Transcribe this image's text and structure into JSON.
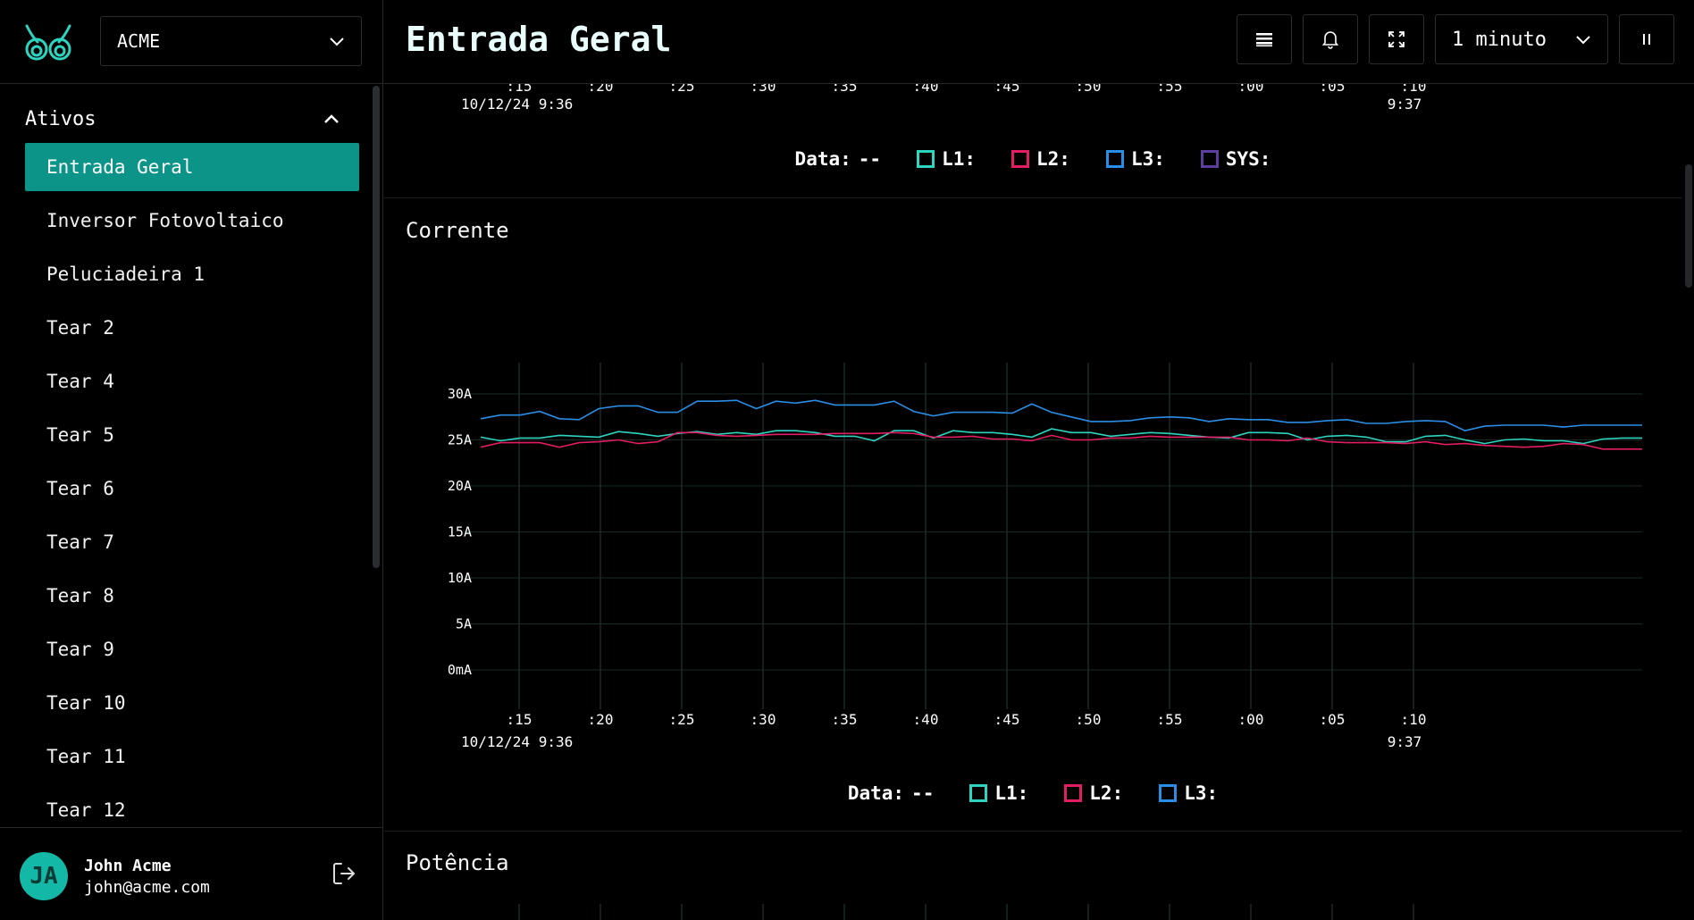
{
  "org_select": {
    "value": "ACME"
  },
  "sidebar": {
    "section_title": "Ativos",
    "items": [
      {
        "label": "Entrada Geral",
        "active": true
      },
      {
        "label": "Inversor Fotovoltaico"
      },
      {
        "label": "Peluciadeira 1"
      },
      {
        "label": "Tear 2"
      },
      {
        "label": "Tear 4"
      },
      {
        "label": "Tear 5"
      },
      {
        "label": "Tear 6"
      },
      {
        "label": "Tear 7"
      },
      {
        "label": "Tear 8"
      },
      {
        "label": "Tear 9"
      },
      {
        "label": "Tear 10"
      },
      {
        "label": "Tear 11"
      },
      {
        "label": "Tear 12"
      }
    ]
  },
  "user": {
    "initials": "JA",
    "name": "John Acme",
    "email": "john@acme.com"
  },
  "header": {
    "title": "Entrada Geral",
    "interval": "1 minuto"
  },
  "colors": {
    "accent": "#0d9488",
    "L1": "#2dd4bf",
    "L2": "#e11d63",
    "L3": "#2b8ee6",
    "SYS": "#5b3f9e"
  },
  "top_panel": {
    "x_ticks": [
      ":15",
      ":20",
      ":25",
      ":30",
      ":35",
      ":40",
      ":45",
      ":50",
      ":55",
      ":00",
      ":05",
      ":10"
    ],
    "date_left": "10/12/24 9:36",
    "date_right": "9:37",
    "legend": {
      "data_label": "Data:",
      "data_value": "--",
      "l1": "L1:",
      "l2": "L2:",
      "l3": "L3:",
      "sys": "SYS:"
    }
  },
  "current_panel": {
    "title": "Corrente",
    "date_left": "10/12/24 9:36",
    "date_right": "9:37",
    "legend": {
      "data_label": "Data:",
      "data_value": "--",
      "l1": "L1:",
      "l2": "L2:",
      "l3": "L3:"
    }
  },
  "power_panel": {
    "title": "Potência"
  },
  "chart_data": {
    "type": "line",
    "title": "Corrente",
    "x_ticks": [
      ":15",
      ":20",
      ":25",
      ":30",
      ":35",
      ":40",
      ":45",
      ":50",
      ":55",
      ":00",
      ":05",
      ":10"
    ],
    "y_ticks": [
      "0mA",
      "5A",
      "10A",
      "15A",
      "20A",
      "25A",
      "30A"
    ],
    "ylim": [
      0,
      32
    ],
    "grid": true,
    "series": [
      {
        "name": "L1",
        "color": "#2dd4bf",
        "values": [
          25.3,
          24.9,
          25.2,
          25.2,
          25.5,
          25.4,
          25.3,
          25.9,
          25.7,
          25.4,
          25.7,
          25.9,
          25.6,
          25.8,
          25.6,
          26.0,
          26.0,
          25.8,
          25.4,
          25.4,
          24.9,
          26.0,
          26.0,
          25.2,
          26.0,
          25.8,
          25.8,
          25.6,
          25.3,
          26.2,
          25.8,
          25.8,
          25.4,
          25.6,
          25.8,
          25.7,
          25.5,
          25.3,
          25.2,
          25.8,
          25.8,
          25.7,
          25.0,
          25.4,
          25.5,
          25.3,
          24.8,
          24.8,
          25.4,
          25.5,
          25.0,
          24.6,
          25.0,
          25.1,
          24.9,
          24.9,
          24.6,
          25.1,
          25.2,
          25.2
        ]
      },
      {
        "name": "L2",
        "color": "#e11d63",
        "values": [
          24.2,
          24.7,
          24.7,
          24.7,
          24.2,
          24.7,
          24.8,
          25.0,
          24.6,
          24.8,
          25.8,
          25.8,
          25.5,
          25.4,
          25.5,
          25.6,
          25.6,
          25.6,
          25.7,
          25.7,
          25.7,
          25.8,
          25.7,
          25.3,
          25.3,
          25.4,
          25.1,
          25.1,
          24.9,
          25.5,
          25.0,
          25.0,
          25.2,
          25.2,
          25.4,
          25.3,
          25.3,
          25.3,
          25.3,
          25.0,
          25.0,
          24.9,
          25.2,
          24.8,
          24.7,
          24.7,
          24.7,
          24.6,
          24.8,
          24.5,
          24.6,
          24.4,
          24.3,
          24.2,
          24.3,
          24.6,
          24.5,
          24.0,
          24.0,
          24.0
        ]
      },
      {
        "name": "L3",
        "color": "#2b8ee6",
        "values": [
          27.3,
          27.7,
          27.7,
          28.1,
          27.3,
          27.2,
          28.4,
          28.7,
          28.7,
          28.0,
          28.0,
          29.2,
          29.2,
          29.3,
          28.4,
          29.2,
          29.0,
          29.3,
          28.8,
          28.8,
          28.8,
          29.2,
          28.1,
          27.6,
          28.0,
          28.0,
          28.0,
          27.9,
          28.9,
          28.0,
          27.5,
          27.0,
          27.0,
          27.1,
          27.4,
          27.5,
          27.4,
          27.0,
          27.3,
          27.2,
          27.2,
          26.9,
          26.9,
          27.1,
          27.2,
          26.8,
          26.8,
          27.0,
          27.1,
          27.0,
          26.0,
          26.5,
          26.6,
          26.6,
          26.6,
          26.4,
          26.6,
          26.6,
          26.6,
          26.6
        ]
      }
    ]
  }
}
